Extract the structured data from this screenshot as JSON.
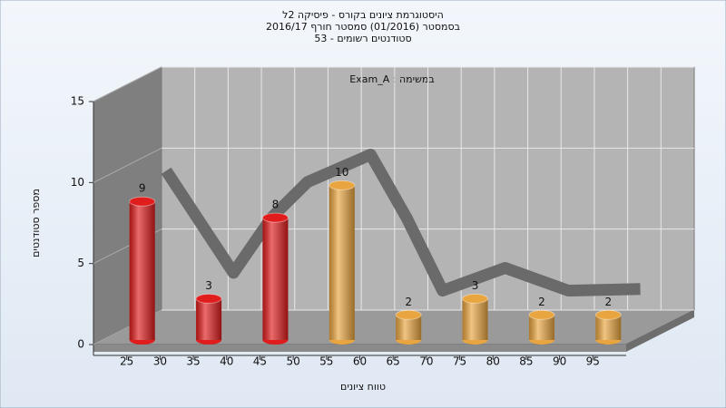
{
  "chart_data": {
    "type": "bar",
    "title": [
      "היסטוגרמת ציונים בקורס - פיסיקה 2ל",
      "בסמסטר (01/2016) סמסטר חורף 2016/17",
      "סטודנטים רשומים - 53"
    ],
    "annotation": "במשימה : Exam_A",
    "x_label": "טווח ציונים",
    "y_label": "מספר סטודנטים",
    "x": [
      25,
      35,
      45,
      55,
      65,
      75,
      85,
      95
    ],
    "values": [
      9,
      3,
      8,
      10,
      2,
      3,
      2,
      2
    ],
    "colors": [
      "#e01c1c",
      "#e01c1c",
      "#e01c1c",
      "#e9a53f",
      "#e9a53f",
      "#e9a53f",
      "#e9a53f",
      "#e9a53f"
    ],
    "trend": {
      "color": "#6a6a6a",
      "x": [
        20.7,
        30.8,
        36.5,
        41.9,
        51.4,
        56.8,
        62.2,
        71.6,
        81.1,
        91.9
      ],
      "values": [
        8.6,
        2.3,
        5.7,
        7.9,
        9.6,
        5.7,
        1.2,
        2.6,
        1.2,
        1.3
      ]
    },
    "xlim": [
      20,
      100
    ],
    "xticks": [
      25,
      30,
      35,
      40,
      45,
      50,
      55,
      60,
      65,
      70,
      75,
      80,
      85,
      90,
      95
    ],
    "ylim": [
      0,
      15
    ],
    "yticks": [
      0,
      5,
      10,
      15
    ],
    "grid": true
  }
}
